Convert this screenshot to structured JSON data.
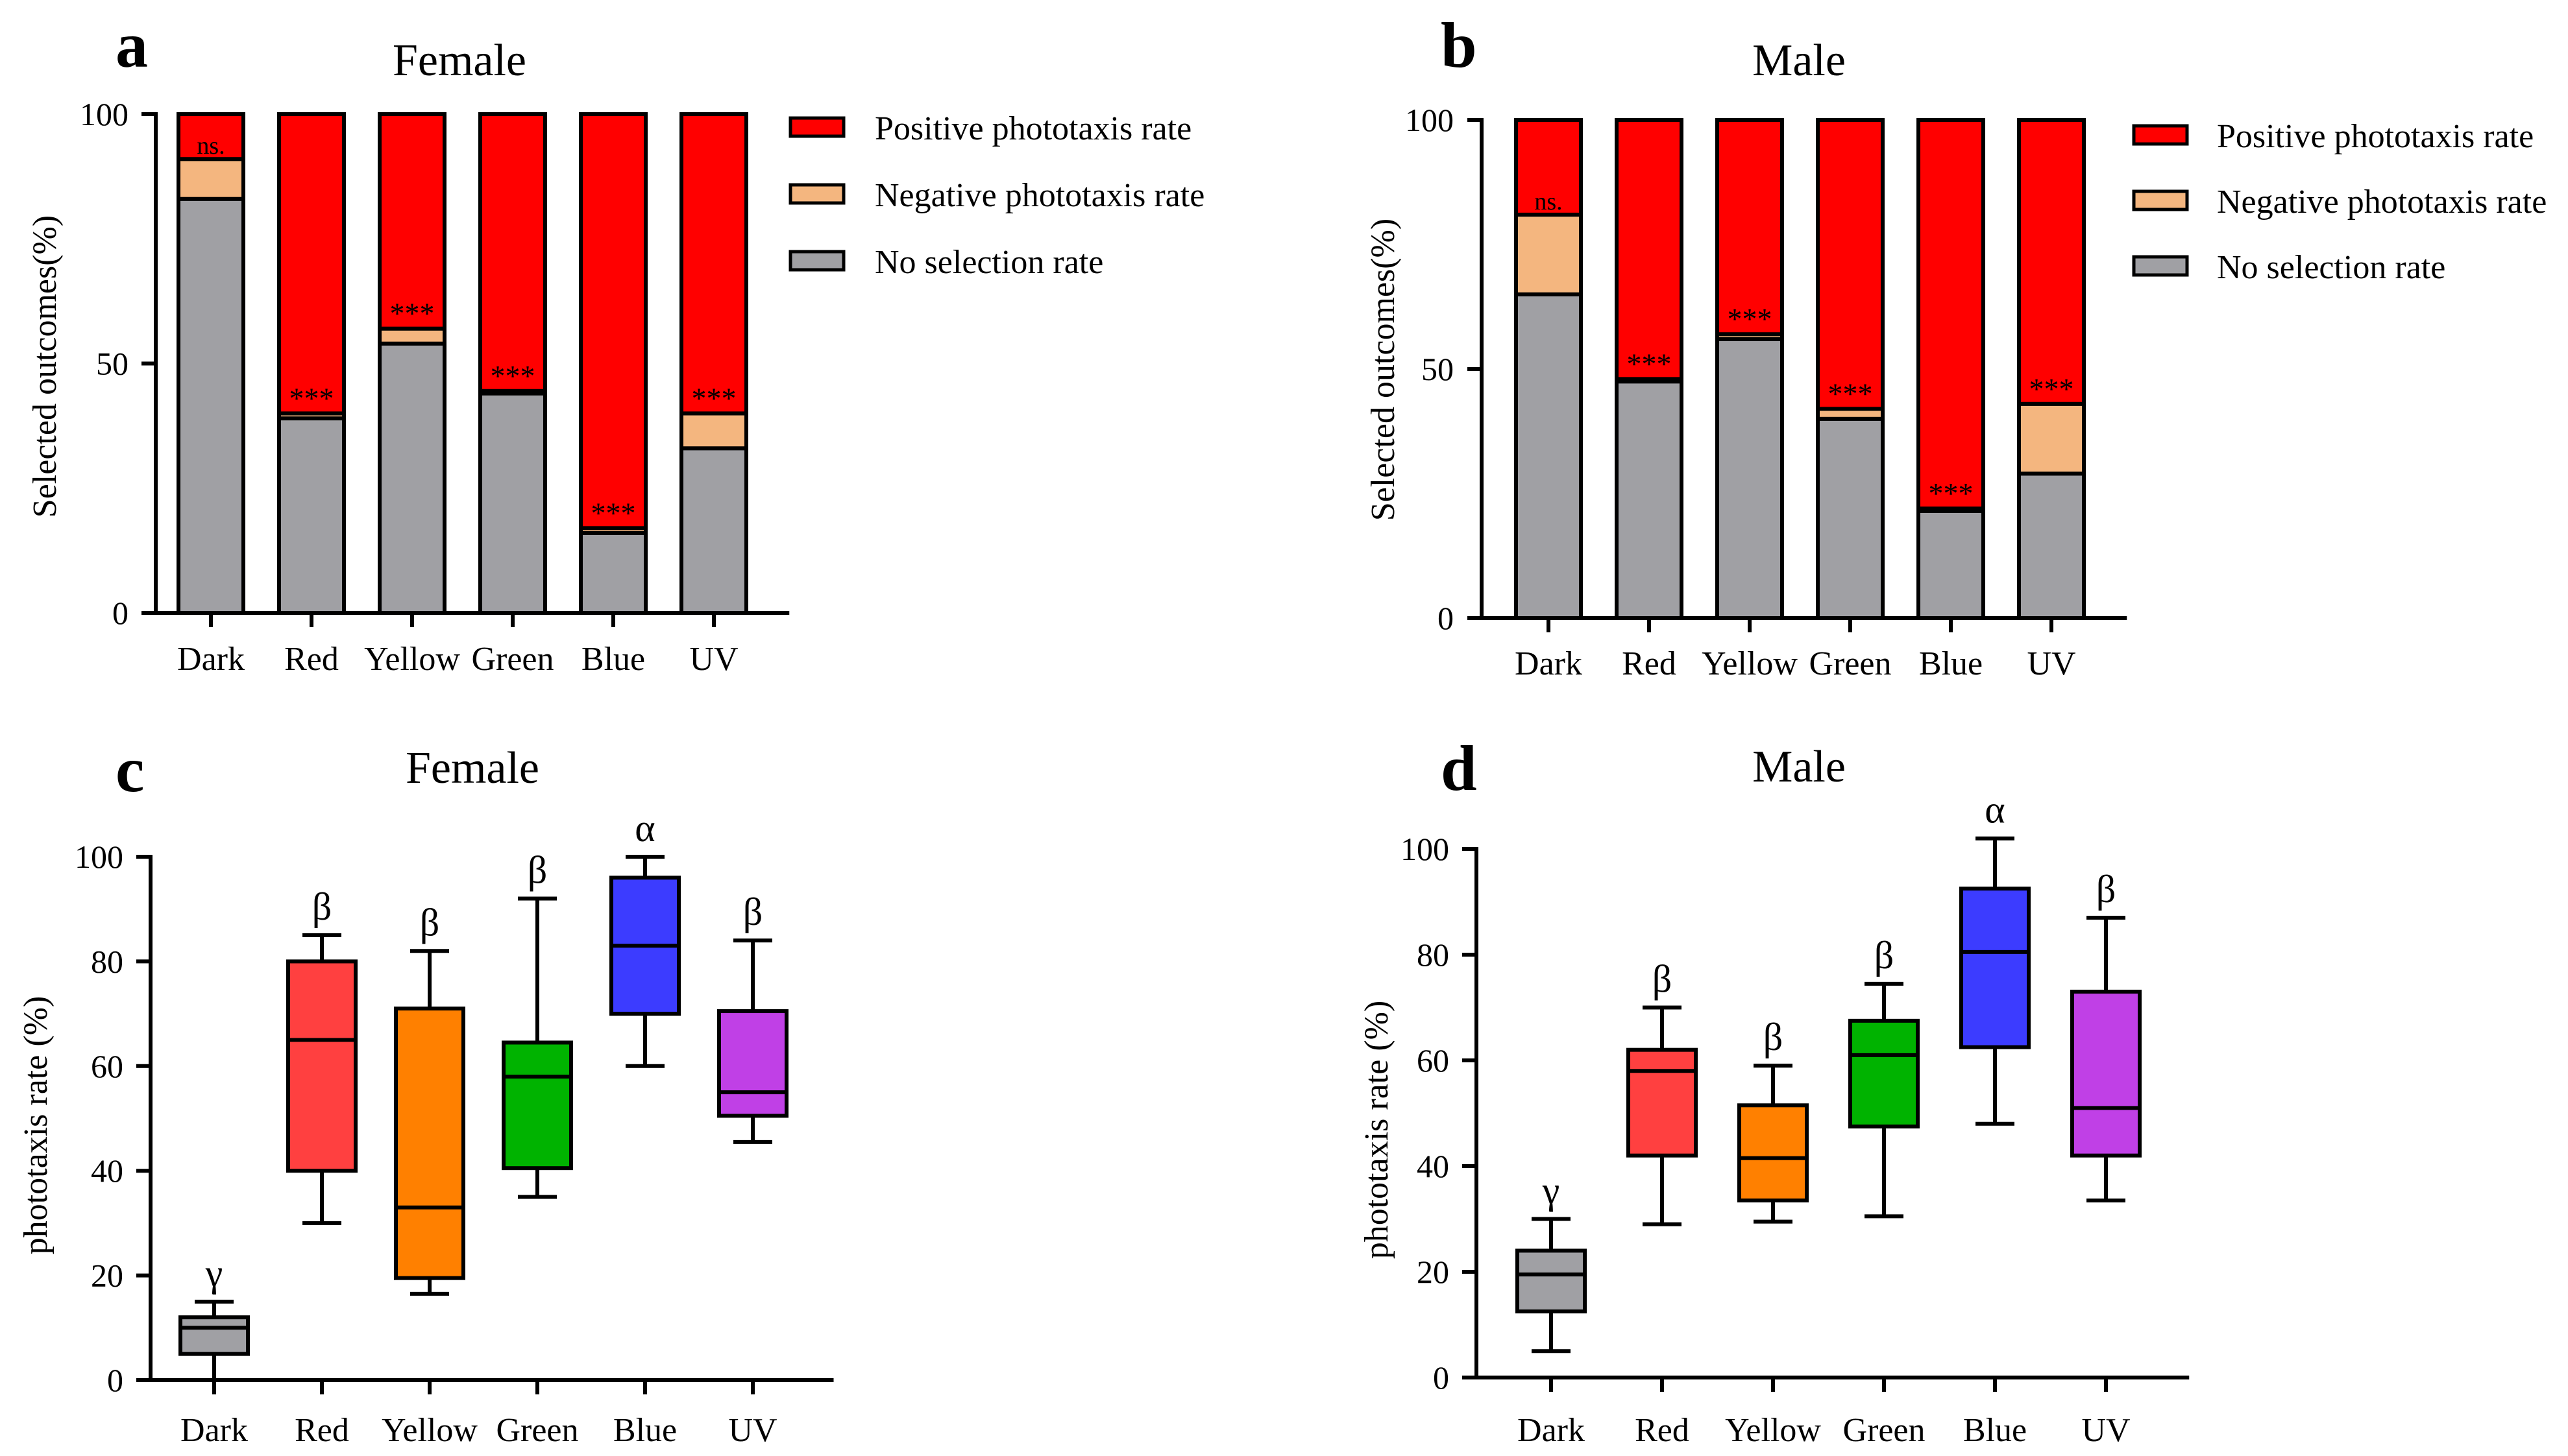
{
  "colors": {
    "positive": "#ff0000",
    "negative": "#f4b67f",
    "none": "#a0a0a4",
    "dark_box": "#a0a0a4",
    "red_box": "#ff4040",
    "yellow_box": "#ff8000",
    "green_box": "#00b300",
    "blue_box": "#3c3cff",
    "uv_box": "#c040e6"
  },
  "chart_data": [
    {
      "panel": "a",
      "title": "Female",
      "type": "bar",
      "stacked": true,
      "ylabel": "Selected outcomes(%)",
      "ylim": [
        0,
        100
      ],
      "yticks": [
        "0",
        "50",
        "100"
      ],
      "categories": [
        "Dark",
        "Red",
        "Yellow",
        "Green",
        "Blue",
        "UV"
      ],
      "series": [
        {
          "name": "No selection rate",
          "color_key": "none",
          "values": [
            83,
            39,
            54,
            44,
            16,
            33
          ]
        },
        {
          "name": "Negative phototaxis rate",
          "color_key": "negative",
          "values": [
            8,
            1,
            3,
            0.5,
            1,
            7
          ]
        },
        {
          "name": "Positive phototaxis rate",
          "color_key": "positive",
          "values": [
            9,
            60,
            43,
            55.5,
            83,
            60
          ]
        }
      ],
      "annotations": [
        "ns.",
        "***",
        "***",
        "***",
        "***",
        "***"
      ],
      "legend": [
        "Positive phototaxis rate",
        "Negative phototaxis rate",
        "No selection rate"
      ]
    },
    {
      "panel": "b",
      "title": "Male",
      "type": "bar",
      "stacked": true,
      "ylabel": "Selected outcomes(%)",
      "ylim": [
        0,
        100
      ],
      "yticks": [
        "0",
        "50",
        "100"
      ],
      "categories": [
        "Dark",
        "Red",
        "Yellow",
        "Green",
        "Blue",
        "UV"
      ],
      "series": [
        {
          "name": "No selection rate",
          "color_key": "none",
          "values": [
            65,
            47.5,
            56,
            40,
            21.5,
            29
          ]
        },
        {
          "name": "Negative phototaxis rate",
          "color_key": "negative",
          "values": [
            16,
            0.5,
            1,
            2,
            0.5,
            14
          ]
        },
        {
          "name": "Positive phototaxis rate",
          "color_key": "positive",
          "values": [
            19,
            52,
            43,
            58,
            78,
            57
          ]
        }
      ],
      "annotations": [
        "ns.",
        "***",
        "***",
        "***",
        "***",
        "***"
      ],
      "legend": [
        "Positive phototaxis rate",
        "Negative phototaxis rate",
        "No selection rate"
      ]
    },
    {
      "panel": "c",
      "title": "Female",
      "type": "box",
      "ylabel": "phototaxis rate (%)",
      "ylim": [
        0,
        100
      ],
      "yticks": [
        "0",
        "20",
        "40",
        "60",
        "80",
        "100"
      ],
      "categories": [
        "Dark",
        "Red",
        "Yellow",
        "Green",
        "Blue",
        "UV"
      ],
      "color_keys": [
        "dark_box",
        "red_box",
        "yellow_box",
        "green_box",
        "blue_box",
        "uv_box"
      ],
      "boxes": [
        {
          "min": 0,
          "q1": 5,
          "median": 10,
          "q3": 12,
          "max": 15
        },
        {
          "min": 30,
          "q1": 40,
          "median": 65,
          "q3": 80,
          "max": 85
        },
        {
          "min": 16.5,
          "q1": 19.5,
          "median": 33,
          "q3": 71,
          "max": 82
        },
        {
          "min": 35,
          "q1": 40.5,
          "median": 58,
          "q3": 64.5,
          "max": 92
        },
        {
          "min": 60,
          "q1": 70,
          "median": 83,
          "q3": 96,
          "max": 100
        },
        {
          "min": 45.5,
          "q1": 50.5,
          "median": 55,
          "q3": 70.5,
          "max": 84
        }
      ],
      "significance": [
        "γ",
        "β",
        "β",
        "β",
        "α",
        "β"
      ]
    },
    {
      "panel": "d",
      "title": "Male",
      "type": "box",
      "ylabel": "phototaxis rate (%)",
      "ylim": [
        0,
        100
      ],
      "yticks": [
        "0",
        "20",
        "40",
        "60",
        "80",
        "100"
      ],
      "categories": [
        "Dark",
        "Red",
        "Yellow",
        "Green",
        "Blue",
        "UV"
      ],
      "color_keys": [
        "dark_box",
        "red_box",
        "yellow_box",
        "green_box",
        "blue_box",
        "uv_box"
      ],
      "boxes": [
        {
          "min": 5,
          "q1": 12.5,
          "median": 19.5,
          "q3": 24,
          "max": 30
        },
        {
          "min": 29,
          "q1": 42,
          "median": 58,
          "q3": 62,
          "max": 70
        },
        {
          "min": 29.5,
          "q1": 33.5,
          "median": 41.5,
          "q3": 51.5,
          "max": 59
        },
        {
          "min": 30.5,
          "q1": 47.5,
          "median": 61,
          "q3": 67.5,
          "max": 74.5
        },
        {
          "min": 48,
          "q1": 62.5,
          "median": 80.5,
          "q3": 92.5,
          "max": 102
        },
        {
          "min": 33.5,
          "q1": 42,
          "median": 51,
          "q3": 73,
          "max": 87
        }
      ],
      "significance": [
        "γ",
        "β",
        "β",
        "β",
        "α",
        "β"
      ]
    }
  ]
}
